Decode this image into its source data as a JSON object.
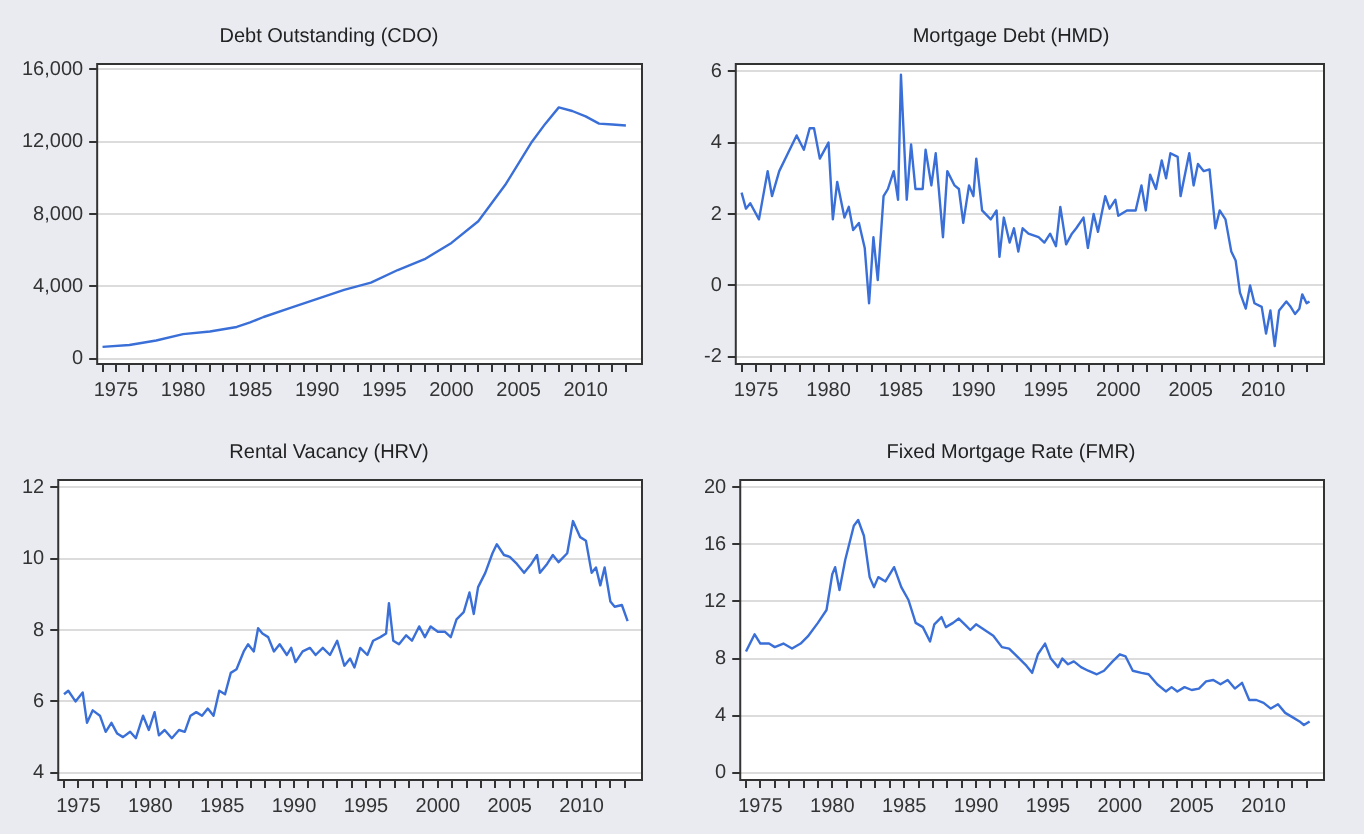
{
  "chart_data": [
    {
      "type": "line",
      "title": "Debt Outstanding (CDO)",
      "grid": "y",
      "legend": false,
      "marker": "none",
      "line_style": "solid",
      "xlim": [
        1973.6,
        2014.2
      ],
      "xticks": [
        {
          "value": 1974,
          "label": null
        },
        1975,
        {
          "value": 1976,
          "label": null
        },
        {
          "value": 1977,
          "label": null
        },
        {
          "value": 1978,
          "label": null
        },
        {
          "value": 1979,
          "label": null
        },
        1980,
        {
          "value": 1981,
          "label": null
        },
        {
          "value": 1982,
          "label": null
        },
        {
          "value": 1983,
          "label": null
        },
        {
          "value": 1984,
          "label": null
        },
        1985,
        {
          "value": 1986,
          "label": null
        },
        {
          "value": 1987,
          "label": null
        },
        {
          "value": 1988,
          "label": null
        },
        {
          "value": 1989,
          "label": null
        },
        1990,
        {
          "value": 1991,
          "label": null
        },
        {
          "value": 1992,
          "label": null
        },
        {
          "value": 1993,
          "label": null
        },
        {
          "value": 1994,
          "label": null
        },
        1995,
        {
          "value": 1996,
          "label": null
        },
        {
          "value": 1997,
          "label": null
        },
        {
          "value": 1998,
          "label": null
        },
        {
          "value": 1999,
          "label": null
        },
        2000,
        {
          "value": 2001,
          "label": null
        },
        {
          "value": 2002,
          "label": null
        },
        {
          "value": 2003,
          "label": null
        },
        {
          "value": 2004,
          "label": null
        },
        2005,
        {
          "value": 2006,
          "label": null
        },
        {
          "value": 2007,
          "label": null
        },
        {
          "value": 2008,
          "label": null
        },
        {
          "value": 2009,
          "label": null
        },
        2010,
        {
          "value": 2011,
          "label": null
        },
        {
          "value": 2012,
          "label": null
        },
        {
          "value": 2013,
          "label": null
        }
      ],
      "ylim": [
        -300,
        16300
      ],
      "yticks": [
        0,
        {
          "value": 4000,
          "label": "4,000"
        },
        {
          "value": 8000,
          "label": "8,000"
        },
        {
          "value": 12000,
          "label": "12,000"
        },
        {
          "value": 16000,
          "label": "16,000"
        }
      ],
      "series": [
        {
          "color": "#3a6fd8",
          "x": [
            1974,
            1976,
            1978,
            1980,
            1982,
            1984,
            1985,
            1986,
            1988,
            1990,
            1992,
            1994,
            1996,
            1998,
            2000,
            2002,
            2004,
            2006,
            2007,
            2008,
            2009,
            2010,
            2011,
            2012,
            2013
          ],
          "values": [
            650,
            750,
            1000,
            1350,
            1500,
            1750,
            2000,
            2300,
            2800,
            3300,
            3800,
            4200,
            4900,
            5500,
            6400,
            7600,
            9600,
            12000,
            13000,
            13900,
            13700,
            13400,
            13000,
            12950,
            12900
          ]
        }
      ]
    },
    {
      "type": "line",
      "title": "Mortgage Debt (HMD)",
      "grid": "y",
      "legend": false,
      "marker": "none",
      "line_style": "solid",
      "xlim": [
        1973.6,
        2014.2
      ],
      "xticks": [
        {
          "value": 1974,
          "label": null
        },
        1975,
        {
          "value": 1976,
          "label": null
        },
        {
          "value": 1977,
          "label": null
        },
        {
          "value": 1978,
          "label": null
        },
        {
          "value": 1979,
          "label": null
        },
        1980,
        {
          "value": 1981,
          "label": null
        },
        {
          "value": 1982,
          "label": null
        },
        {
          "value": 1983,
          "label": null
        },
        {
          "value": 1984,
          "label": null
        },
        1985,
        {
          "value": 1986,
          "label": null
        },
        {
          "value": 1987,
          "label": null
        },
        {
          "value": 1988,
          "label": null
        },
        {
          "value": 1989,
          "label": null
        },
        1990,
        {
          "value": 1991,
          "label": null
        },
        {
          "value": 1992,
          "label": null
        },
        {
          "value": 1993,
          "label": null
        },
        {
          "value": 1994,
          "label": null
        },
        1995,
        {
          "value": 1996,
          "label": null
        },
        {
          "value": 1997,
          "label": null
        },
        {
          "value": 1998,
          "label": null
        },
        {
          "value": 1999,
          "label": null
        },
        2000,
        {
          "value": 2001,
          "label": null
        },
        {
          "value": 2002,
          "label": null
        },
        {
          "value": 2003,
          "label": null
        },
        {
          "value": 2004,
          "label": null
        },
        2005,
        {
          "value": 2006,
          "label": null
        },
        {
          "value": 2007,
          "label": null
        },
        {
          "value": 2008,
          "label": null
        },
        {
          "value": 2009,
          "label": null
        },
        2010,
        {
          "value": 2011,
          "label": null
        },
        {
          "value": 2012,
          "label": null
        },
        {
          "value": 2013,
          "label": null
        }
      ],
      "ylim": [
        -2.2,
        6.2
      ],
      "yticks": [
        -2,
        0,
        2,
        4,
        6
      ],
      "series": [
        {
          "color": "#3a6fd8",
          "x": [
            1974.0,
            1974.3,
            1974.6,
            1975.2,
            1975.8,
            1976.1,
            1976.6,
            1977.2,
            1977.8,
            1978.3,
            1978.7,
            1979.0,
            1979.4,
            1980.0,
            1980.3,
            1980.6,
            1981.1,
            1981.4,
            1981.7,
            1982.1,
            1982.5,
            1982.8,
            1983.1,
            1983.4,
            1983.8,
            1984.1,
            1984.5,
            1984.8,
            1985.0,
            1985.4,
            1985.7,
            1986.0,
            1986.5,
            1986.7,
            1987.1,
            1987.4,
            1987.9,
            1988.2,
            1988.7,
            1989.0,
            1989.3,
            1989.7,
            1990.0,
            1990.2,
            1990.6,
            1991.2,
            1991.6,
            1991.8,
            1992.1,
            1992.5,
            1992.8,
            1993.1,
            1993.4,
            1993.8,
            1994.5,
            1994.9,
            1995.3,
            1995.7,
            1996.0,
            1996.4,
            1996.8,
            1997.1,
            1997.6,
            1997.9,
            1998.3,
            1998.6,
            1999.1,
            1999.4,
            1999.8,
            2000.0,
            2000.6,
            2001.2,
            2001.6,
            2001.9,
            2002.2,
            2002.6,
            2003.0,
            2003.3,
            2003.6,
            2004.1,
            2004.3,
            2004.7,
            2004.9,
            2005.2,
            2005.5,
            2005.9,
            2006.3,
            2006.7,
            2007.0,
            2007.4,
            2007.8,
            2008.1,
            2008.4,
            2008.8,
            2009.1,
            2009.4,
            2009.9,
            2010.2,
            2010.5,
            2010.8,
            2011.1,
            2011.6,
            2011.9,
            2012.2,
            2012.5,
            2012.7,
            2013.0,
            2013.2
          ],
          "values": [
            2.6,
            2.15,
            2.3,
            1.85,
            3.2,
            2.5,
            3.2,
            3.7,
            4.2,
            3.8,
            4.4,
            4.4,
            3.55,
            4.0,
            1.85,
            2.9,
            1.9,
            2.2,
            1.55,
            1.75,
            1.05,
            -0.5,
            1.35,
            0.15,
            2.5,
            2.7,
            3.2,
            2.4,
            5.9,
            2.4,
            3.95,
            2.7,
            2.7,
            3.8,
            2.8,
            3.7,
            1.35,
            3.2,
            2.8,
            2.7,
            1.75,
            2.8,
            2.5,
            3.55,
            2.1,
            1.85,
            2.1,
            0.8,
            1.9,
            1.2,
            1.6,
            0.95,
            1.6,
            1.45,
            1.35,
            1.2,
            1.45,
            1.1,
            2.2,
            1.15,
            1.45,
            1.6,
            1.9,
            1.05,
            2.0,
            1.5,
            2.5,
            2.15,
            2.4,
            1.95,
            2.1,
            2.1,
            2.8,
            2.1,
            3.1,
            2.7,
            3.5,
            3.0,
            3.7,
            3.6,
            2.5,
            3.3,
            3.7,
            2.8,
            3.4,
            3.2,
            3.25,
            1.6,
            2.1,
            1.85,
            0.95,
            0.7,
            -0.2,
            -0.65,
            0,
            -0.5,
            -0.6,
            -1.35,
            -0.7,
            -1.7,
            -0.7,
            -0.45,
            -0.6,
            -0.8,
            -0.65,
            -0.25,
            -0.5,
            -0.45
          ]
        }
      ]
    },
    {
      "type": "line",
      "title": "Rental Vacancy (HRV)",
      "grid": "y",
      "legend": false,
      "marker": "none",
      "line_style": "solid",
      "xlim": [
        1973.6,
        2014.2
      ],
      "xticks": [
        {
          "value": 1974,
          "label": null
        },
        1975,
        {
          "value": 1976,
          "label": null
        },
        {
          "value": 1977,
          "label": null
        },
        {
          "value": 1978,
          "label": null
        },
        {
          "value": 1979,
          "label": null
        },
        1980,
        {
          "value": 1981,
          "label": null
        },
        {
          "value": 1982,
          "label": null
        },
        {
          "value": 1983,
          "label": null
        },
        {
          "value": 1984,
          "label": null
        },
        1985,
        {
          "value": 1986,
          "label": null
        },
        {
          "value": 1987,
          "label": null
        },
        {
          "value": 1988,
          "label": null
        },
        {
          "value": 1989,
          "label": null
        },
        1990,
        {
          "value": 1991,
          "label": null
        },
        {
          "value": 1992,
          "label": null
        },
        {
          "value": 1993,
          "label": null
        },
        {
          "value": 1994,
          "label": null
        },
        1995,
        {
          "value": 1996,
          "label": null
        },
        {
          "value": 1997,
          "label": null
        },
        {
          "value": 1998,
          "label": null
        },
        {
          "value": 1999,
          "label": null
        },
        2000,
        {
          "value": 2001,
          "label": null
        },
        {
          "value": 2002,
          "label": null
        },
        {
          "value": 2003,
          "label": null
        },
        {
          "value": 2004,
          "label": null
        },
        2005,
        {
          "value": 2006,
          "label": null
        },
        {
          "value": 2007,
          "label": null
        },
        {
          "value": 2008,
          "label": null
        },
        {
          "value": 2009,
          "label": null
        },
        2010,
        {
          "value": 2011,
          "label": null
        },
        {
          "value": 2012,
          "label": null
        },
        {
          "value": 2013,
          "label": null
        }
      ],
      "ylim": [
        3.8,
        12.2
      ],
      "yticks": [
        4,
        6,
        8,
        10,
        12
      ],
      "series": [
        {
          "color": "#3a6fd8",
          "x": [
            1974.0,
            1974.3,
            1974.8,
            1975.3,
            1975.6,
            1976.0,
            1976.5,
            1976.9,
            1977.3,
            1977.7,
            1978.1,
            1978.6,
            1979.0,
            1979.5,
            1979.9,
            1980.3,
            1980.6,
            1981.0,
            1981.5,
            1982.0,
            1982.4,
            1982.8,
            1983.2,
            1983.6,
            1984.0,
            1984.4,
            1984.8,
            1985.2,
            1985.6,
            1986.0,
            1986.5,
            1986.8,
            1987.2,
            1987.5,
            1987.8,
            1988.2,
            1988.6,
            1989.0,
            1989.5,
            1989.8,
            1990.1,
            1990.6,
            1991.1,
            1991.5,
            1992.0,
            1992.5,
            1993.0,
            1993.5,
            1993.9,
            1994.2,
            1994.6,
            1995.1,
            1995.5,
            1996.0,
            1996.4,
            1996.6,
            1996.9,
            1997.3,
            1997.8,
            1998.2,
            1998.7,
            1999.1,
            1999.5,
            2000.0,
            2000.5,
            2000.9,
            2001.3,
            2001.8,
            2002.2,
            2002.5,
            2002.8,
            2003.3,
            2003.8,
            2004.1,
            2004.6,
            2005.0,
            2005.5,
            2006.0,
            2006.5,
            2006.9,
            2007.1,
            2007.6,
            2008.0,
            2008.4,
            2009.0,
            2009.4,
            2009.9,
            2010.3,
            2010.7,
            2011.0,
            2011.3,
            2011.6,
            2012.0,
            2012.3,
            2012.8,
            2013.2
          ],
          "values": [
            6.2,
            6.3,
            6.0,
            6.25,
            5.4,
            5.75,
            5.6,
            5.15,
            5.4,
            5.1,
            5.0,
            5.15,
            4.97,
            5.6,
            5.2,
            5.7,
            5.05,
            5.2,
            4.97,
            5.2,
            5.15,
            5.6,
            5.7,
            5.6,
            5.8,
            5.6,
            6.3,
            6.2,
            6.8,
            6.9,
            7.4,
            7.6,
            7.4,
            8.05,
            7.9,
            7.8,
            7.4,
            7.6,
            7.3,
            7.5,
            7.1,
            7.4,
            7.5,
            7.3,
            7.5,
            7.3,
            7.7,
            7.0,
            7.2,
            6.95,
            7.5,
            7.3,
            7.7,
            7.8,
            7.9,
            8.75,
            7.7,
            7.6,
            7.85,
            7.7,
            8.1,
            7.8,
            8.1,
            7.95,
            7.95,
            7.8,
            8.3,
            8.5,
            9.05,
            8.45,
            9.2,
            9.6,
            10.15,
            10.4,
            10.1,
            10.05,
            9.85,
            9.6,
            9.85,
            10.1,
            9.6,
            9.85,
            10.1,
            9.9,
            10.15,
            11.05,
            10.6,
            10.5,
            9.6,
            9.75,
            9.25,
            9.75,
            8.8,
            8.65,
            8.7,
            8.25
          ]
        }
      ]
    },
    {
      "type": "line",
      "title": "Fixed Mortgage Rate (FMR)",
      "grid": "y",
      "legend": false,
      "marker": "none",
      "line_style": "solid",
      "xlim": [
        1973.6,
        2014.2
      ],
      "xticks": [
        {
          "value": 1974,
          "label": null
        },
        1975,
        {
          "value": 1976,
          "label": null
        },
        {
          "value": 1977,
          "label": null
        },
        {
          "value": 1978,
          "label": null
        },
        {
          "value": 1979,
          "label": null
        },
        1980,
        {
          "value": 1981,
          "label": null
        },
        {
          "value": 1982,
          "label": null
        },
        {
          "value": 1983,
          "label": null
        },
        {
          "value": 1984,
          "label": null
        },
        1985,
        {
          "value": 1986,
          "label": null
        },
        {
          "value": 1987,
          "label": null
        },
        {
          "value": 1988,
          "label": null
        },
        {
          "value": 1989,
          "label": null
        },
        1990,
        {
          "value": 1991,
          "label": null
        },
        {
          "value": 1992,
          "label": null
        },
        {
          "value": 1993,
          "label": null
        },
        {
          "value": 1994,
          "label": null
        },
        1995,
        {
          "value": 1996,
          "label": null
        },
        {
          "value": 1997,
          "label": null
        },
        {
          "value": 1998,
          "label": null
        },
        {
          "value": 1999,
          "label": null
        },
        2000,
        {
          "value": 2001,
          "label": null
        },
        {
          "value": 2002,
          "label": null
        },
        {
          "value": 2003,
          "label": null
        },
        {
          "value": 2004,
          "label": null
        },
        2005,
        {
          "value": 2006,
          "label": null
        },
        {
          "value": 2007,
          "label": null
        },
        {
          "value": 2008,
          "label": null
        },
        {
          "value": 2009,
          "label": null
        },
        2010,
        {
          "value": 2011,
          "label": null
        },
        {
          "value": 2012,
          "label": null
        },
        {
          "value": 2013,
          "label": null
        }
      ],
      "ylim": [
        -0.5,
        20.5
      ],
      "yticks": [
        0,
        4,
        8,
        12,
        16,
        20
      ],
      "series": [
        {
          "color": "#3a6fd8",
          "x": [
            1974.0,
            1974.6,
            1975.0,
            1975.6,
            1976.0,
            1976.6,
            1977.2,
            1977.8,
            1978.3,
            1979.0,
            1979.6,
            1980.0,
            1980.2,
            1980.5,
            1980.9,
            1981.5,
            1981.8,
            1982.2,
            1982.6,
            1982.9,
            1983.2,
            1983.7,
            1984.3,
            1984.8,
            1985.3,
            1985.8,
            1986.3,
            1986.8,
            1987.1,
            1987.6,
            1987.9,
            1988.4,
            1988.8,
            1989.3,
            1989.6,
            1990.0,
            1990.6,
            1991.2,
            1991.8,
            1992.3,
            1992.8,
            1993.5,
            1993.9,
            1994.3,
            1994.8,
            1995.2,
            1995.7,
            1996.0,
            1996.4,
            1996.8,
            1997.3,
            1997.8,
            1998.4,
            1998.9,
            1999.5,
            2000.0,
            2000.4,
            2000.9,
            2001.5,
            2002.0,
            2002.6,
            2003.2,
            2003.6,
            2004.0,
            2004.5,
            2005.0,
            2005.5,
            2006.0,
            2006.5,
            2007.0,
            2007.5,
            2008.0,
            2008.5,
            2009.0,
            2009.5,
            2010.0,
            2010.5,
            2011.0,
            2011.5,
            2012.0,
            2012.5,
            2012.8,
            2013.2
          ],
          "values": [
            8.5,
            9.7,
            9.05,
            9.05,
            8.8,
            9.05,
            8.7,
            9.05,
            9.55,
            10.5,
            11.4,
            13.9,
            14.4,
            12.8,
            14.9,
            17.3,
            17.7,
            16.6,
            13.7,
            13.0,
            13.7,
            13.4,
            14.4,
            13.0,
            12.1,
            10.5,
            10.2,
            9.2,
            10.4,
            10.9,
            10.2,
            10.5,
            10.8,
            10.3,
            10.0,
            10.4,
            10.0,
            9.6,
            8.8,
            8.7,
            8.2,
            7.5,
            7.0,
            8.3,
            9.05,
            8.0,
            7.4,
            8.0,
            7.6,
            7.8,
            7.4,
            7.15,
            6.9,
            7.15,
            7.8,
            8.3,
            8.15,
            7.15,
            7.0,
            6.9,
            6.2,
            5.7,
            6.0,
            5.7,
            6.0,
            5.8,
            5.9,
            6.4,
            6.5,
            6.2,
            6.5,
            5.9,
            6.3,
            5.1,
            5.1,
            4.9,
            4.5,
            4.8,
            4.2,
            3.9,
            3.6,
            3.35,
            3.6
          ]
        }
      ]
    }
  ]
}
